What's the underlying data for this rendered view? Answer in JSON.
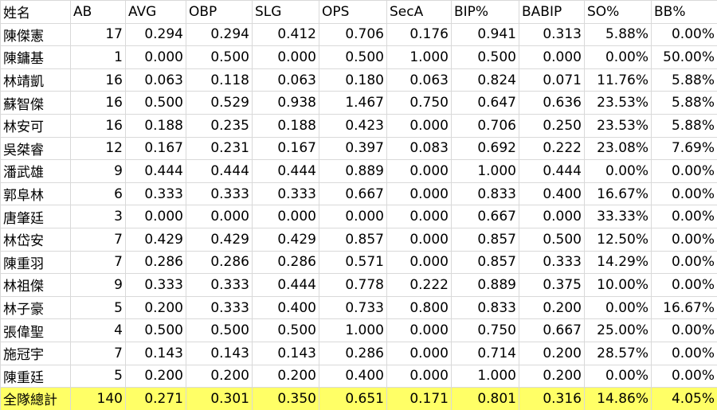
{
  "table": {
    "header": [
      "姓名",
      "AB",
      "AVG",
      "OBP",
      "SLG",
      "OPS",
      "SecA",
      "BIP%",
      "BABIP",
      "SO%",
      "BB%"
    ],
    "rows": [
      [
        "陳傑憲",
        "17",
        "0.294",
        "0.294",
        "0.412",
        "0.706",
        "0.176",
        "0.941",
        "0.313",
        "5.88%",
        "0.00%"
      ],
      [
        "陳鏞基",
        "1",
        "0.000",
        "0.500",
        "0.000",
        "0.500",
        "1.000",
        "0.500",
        "0.000",
        "0.00%",
        "50.00%"
      ],
      [
        "林靖凱",
        "16",
        "0.063",
        "0.118",
        "0.063",
        "0.180",
        "0.063",
        "0.824",
        "0.071",
        "11.76%",
        "5.88%"
      ],
      [
        "蘇智傑",
        "16",
        "0.500",
        "0.529",
        "0.938",
        "1.467",
        "0.750",
        "0.647",
        "0.636",
        "23.53%",
        "5.88%"
      ],
      [
        "林安可",
        "16",
        "0.188",
        "0.235",
        "0.188",
        "0.423",
        "0.000",
        "0.706",
        "0.250",
        "23.53%",
        "5.88%"
      ],
      [
        "吳桀睿",
        "12",
        "0.167",
        "0.231",
        "0.167",
        "0.397",
        "0.083",
        "0.692",
        "0.222",
        "23.08%",
        "7.69%"
      ],
      [
        "潘武雄",
        "9",
        "0.444",
        "0.444",
        "0.444",
        "0.889",
        "0.000",
        "1.000",
        "0.444",
        "0.00%",
        "0.00%"
      ],
      [
        "郭阜林",
        "6",
        "0.333",
        "0.333",
        "0.333",
        "0.667",
        "0.000",
        "0.833",
        "0.400",
        "16.67%",
        "0.00%"
      ],
      [
        "唐肇廷",
        "3",
        "0.000",
        "0.000",
        "0.000",
        "0.000",
        "0.000",
        "0.667",
        "0.000",
        "33.33%",
        "0.00%"
      ],
      [
        "林岱安",
        "7",
        "0.429",
        "0.429",
        "0.429",
        "0.857",
        "0.000",
        "0.857",
        "0.500",
        "12.50%",
        "0.00%"
      ],
      [
        "陳重羽",
        "7",
        "0.286",
        "0.286",
        "0.286",
        "0.571",
        "0.000",
        "0.857",
        "0.333",
        "14.29%",
        "0.00%"
      ],
      [
        "林祖傑",
        "9",
        "0.333",
        "0.333",
        "0.444",
        "0.778",
        "0.222",
        "0.889",
        "0.375",
        "10.00%",
        "0.00%"
      ],
      [
        "林子豪",
        "5",
        "0.200",
        "0.333",
        "0.400",
        "0.733",
        "0.800",
        "0.833",
        "0.200",
        "0.00%",
        "16.67%"
      ],
      [
        "張偉聖",
        "4",
        "0.500",
        "0.500",
        "0.500",
        "1.000",
        "0.000",
        "0.750",
        "0.667",
        "25.00%",
        "0.00%"
      ],
      [
        "施冠宇",
        "7",
        "0.143",
        "0.143",
        "0.143",
        "0.286",
        "0.000",
        "0.714",
        "0.200",
        "28.57%",
        "0.00%"
      ],
      [
        "陳重廷",
        "5",
        "0.200",
        "0.200",
        "0.200",
        "0.400",
        "0.000",
        "1.000",
        "0.200",
        "0.00%",
        "0.00%"
      ]
    ],
    "total_row": [
      "全隊總計",
      "140",
      "0.271",
      "0.301",
      "0.350",
      "0.651",
      "0.171",
      "0.801",
      "0.316",
      "14.86%",
      "4.05%"
    ]
  }
}
